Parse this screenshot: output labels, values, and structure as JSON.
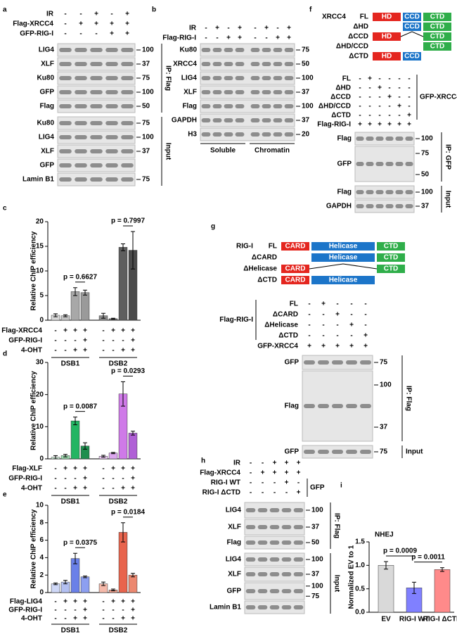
{
  "blots": [
    {
      "label": "a",
      "conditions": [
        {
          "name": "IR",
          "signs": [
            "-",
            "-",
            "+",
            "-",
            "+"
          ]
        },
        {
          "name": "Flag-XRCC4",
          "signs": [
            "-",
            "+",
            "+",
            "+",
            "+"
          ]
        },
        {
          "name": "GFP-RIG-I",
          "signs": [
            "-",
            "-",
            "-",
            "+",
            "+"
          ]
        }
      ],
      "groups": [
        {
          "name": "IP: Flag",
          "bands": [
            {
              "name": "LIG4",
              "markers": [
                100
              ]
            },
            {
              "name": "XLF",
              "markers": [
                37
              ]
            },
            {
              "name": "Ku80",
              "markers": [
                75
              ]
            },
            {
              "name": "GFP",
              "markers": [
                100
              ]
            },
            {
              "name": "Flag",
              "markers": [
                50
              ]
            }
          ]
        },
        {
          "name": "Input",
          "bands": [
            {
              "name": "Ku80",
              "markers": [
                75
              ]
            },
            {
              "name": "LIG4",
              "markers": [
                100
              ]
            },
            {
              "name": "XLF",
              "markers": [
                37
              ]
            },
            {
              "name": "GFP"
            },
            {
              "name": "Lamin B1",
              "markers": [
                75
              ]
            }
          ]
        }
      ]
    },
    {
      "label": "b",
      "conditions": [
        {
          "name": "IR",
          "signs": [
            "-",
            "+",
            "-",
            "+",
            "-",
            "+",
            "-",
            "+"
          ]
        },
        {
          "name": "Flag-RIG-I",
          "signs": [
            "-",
            "-",
            "+",
            "+",
            "-",
            "-",
            "+",
            "+"
          ]
        }
      ],
      "groups": [
        {
          "bands": [
            {
              "name": "Ku80",
              "markers": [
                75
              ]
            },
            {
              "name": "XRCC4",
              "markers": [
                50
              ]
            },
            {
              "name": "LIG4",
              "markers": [
                100
              ]
            },
            {
              "name": "XLF",
              "markers": [
                37
              ]
            },
            {
              "name": "Flag",
              "markers": [
                100
              ]
            },
            {
              "name": "GAPDH",
              "markers": [
                37
              ]
            },
            {
              "name": "H3",
              "markers": [
                20
              ]
            }
          ]
        }
      ],
      "fractions": [
        "Soluble",
        "Chromatin"
      ]
    },
    {
      "label": "f",
      "constructs": {
        "protein": "XRCC4",
        "domain_colors": [
          "#e4261f",
          "#1c75c9",
          "#2fae4a"
        ],
        "rows": [
          {
            "name": "FL",
            "domains": [
              "HD",
              "CCD",
              "CTD"
            ]
          },
          {
            "name": "ΔHD",
            "domains": [
              "CCD",
              "CTD"
            ]
          },
          {
            "name": "ΔCCD",
            "domains": [
              "HD",
              "CTD"
            ]
          },
          {
            "name": "ΔHD/CCD",
            "domains": [
              "CTD"
            ]
          },
          {
            "name": "ΔCTD",
            "domains": [
              "HD",
              "CCD"
            ]
          }
        ]
      },
      "conditions": [
        {
          "group": "GFP-XRCC4",
          "label_side": "right",
          "items": [
            {
              "name": "FL",
              "signs": [
                "-",
                "+",
                "-",
                "-",
                "-",
                "-"
              ]
            },
            {
              "name": "ΔHD",
              "signs": [
                "-",
                "-",
                "+",
                "-",
                "-",
                "-"
              ]
            },
            {
              "name": "ΔCCD",
              "signs": [
                "-",
                "-",
                "-",
                "+",
                "-",
                "-"
              ]
            },
            {
              "name": "ΔHD/CCD",
              "signs": [
                "-",
                "-",
                "-",
                "-",
                "+",
                "-"
              ]
            },
            {
              "name": "ΔCTD",
              "signs": [
                "-",
                "-",
                "-",
                "-",
                "-",
                "+"
              ]
            }
          ]
        },
        {
          "name": "Flag-RIG-I",
          "signs": [
            "+",
            "+",
            "+",
            "+",
            "+",
            "+"
          ]
        }
      ],
      "groups": [
        {
          "name": "IP: GFP",
          "bands": [
            {
              "name": "Flag",
              "markers": [
                100
              ]
            },
            {
              "name": "GFP",
              "markers": [
                75,
                50
              ]
            }
          ]
        },
        {
          "name": "Input",
          "bands": [
            {
              "name": "Flag",
              "markers": [
                100
              ]
            },
            {
              "name": "GAPDH",
              "markers": [
                37
              ]
            }
          ]
        }
      ]
    },
    {
      "label": "g",
      "constructs": {
        "protein": "RIG-I",
        "domain_colors": [
          "#e4261f",
          "#1c75c9",
          "#2fae4a"
        ],
        "rows": [
          {
            "name": "FL",
            "domains": [
              "CARD",
              "Helicase",
              "CTD"
            ]
          },
          {
            "name": "ΔCARD",
            "domains": [
              "Helicase",
              "CTD"
            ]
          },
          {
            "name": "ΔHelicase",
            "domains": [
              "CARD",
              "CTD"
            ]
          },
          {
            "name": "ΔCTD",
            "domains": [
              "CARD",
              "Helicase"
            ]
          }
        ]
      },
      "conditions": [
        {
          "group": "Flag-RIG-I",
          "label_side": "left",
          "items": [
            {
              "name": "FL",
              "signs": [
                "-",
                "+",
                "-",
                "-",
                "-"
              ]
            },
            {
              "name": "ΔCARD",
              "signs": [
                "-",
                "-",
                "+",
                "-",
                "-"
              ]
            },
            {
              "name": "ΔHelicase",
              "signs": [
                "-",
                "-",
                "-",
                "+",
                "-"
              ]
            },
            {
              "name": "ΔCTD",
              "signs": [
                "-",
                "-",
                "-",
                "-",
                "+"
              ]
            }
          ]
        },
        {
          "name": "GFP-XRCC4",
          "signs": [
            "+",
            "+",
            "+",
            "+",
            "+"
          ]
        }
      ],
      "groups": [
        {
          "name": "IP: Flag",
          "bands": [
            {
              "name": "GFP",
              "markers": [
                75
              ]
            },
            {
              "name": "Flag",
              "markers": [
                100,
                37
              ]
            }
          ]
        },
        {
          "name": "Input",
          "bands": [
            {
              "name": "GFP",
              "markers": [
                75
              ]
            }
          ]
        }
      ]
    },
    {
      "label": "h",
      "conditions": [
        {
          "name": "IR",
          "signs": [
            "-",
            "-",
            "+",
            "+",
            "+"
          ]
        },
        {
          "name": "Flag-XRCC4",
          "signs": [
            "-",
            "+",
            "+",
            "+",
            "+"
          ]
        },
        {
          "group": "GFP",
          "label_side": "right",
          "items": [
            {
              "name": "RIG-I WT",
              "signs": [
                "-",
                "-",
                "-",
                "+",
                "-"
              ]
            },
            {
              "name": "RIG-I ΔCTD",
              "signs": [
                "-",
                "-",
                "-",
                "-",
                "+"
              ]
            }
          ]
        }
      ],
      "groups": [
        {
          "name": "IP: Flag",
          "bands": [
            {
              "name": "LIG4",
              "markers": [
                100
              ]
            },
            {
              "name": "XLF",
              "markers": [
                37
              ]
            },
            {
              "name": "Flag",
              "markers": [
                50
              ]
            }
          ]
        },
        {
          "name": "Input",
          "bands": [
            {
              "name": "LIG4",
              "markers": [
                100
              ]
            },
            {
              "name": "XLF",
              "markers": [
                37
              ]
            },
            {
              "name": "GFP",
              "markers": [
                100,
                75
              ]
            },
            {
              "name": "Lamin B1"
            }
          ]
        }
      ]
    }
  ],
  "chart_data": [
    {
      "type": "bar",
      "label": "c",
      "ylabel": "Relative ChIP efficiency",
      "ylim": [
        0,
        20
      ],
      "yticks": [
        0,
        5,
        10,
        15,
        20
      ],
      "groups": [
        "DSB1",
        "DSB2"
      ],
      "values": [
        1.0,
        0.9,
        5.8,
        5.6,
        0.9,
        0.3,
        14.8,
        14.2
      ],
      "errors": [
        0.3,
        0.2,
        0.8,
        0.5,
        0.5,
        0.1,
        0.7,
        3.8
      ],
      "colors": [
        "#d9d9d9",
        "#c4c4c4",
        "#a8a8a8",
        "#9a9a9a",
        "#8a8a8a",
        "#6f6f6f",
        "#5e5e5e",
        "#4a4a4a"
      ],
      "conditions": [
        {
          "name": "Flag-XRCC4",
          "signs": [
            "-",
            "+",
            "+",
            "+",
            "-",
            "+",
            "+",
            "+"
          ]
        },
        {
          "name": "GFP-RIG-I",
          "signs": [
            "-",
            "-",
            "-",
            "+",
            "-",
            "-",
            "-",
            "+"
          ]
        },
        {
          "name": "4-OHT",
          "signs": [
            "-",
            "-",
            "+",
            "+",
            "-",
            "-",
            "+",
            "+"
          ]
        }
      ],
      "p_values": [
        "p = 0.6627",
        "p = 0.7997"
      ]
    },
    {
      "type": "bar",
      "label": "d",
      "ylabel": "Relative ChIP efficiency",
      "ylim": [
        0,
        30
      ],
      "yticks": [
        0,
        10,
        20,
        30
      ],
      "groups": [
        "DSB1",
        "DSB2"
      ],
      "values": [
        0.5,
        1.0,
        11.8,
        4.0,
        0.8,
        1.8,
        20.2,
        8.0
      ],
      "errors": [
        0.5,
        0.4,
        1.2,
        1.0,
        0.3,
        0.2,
        3.8,
        0.6
      ],
      "colors": [
        "#cdeed6",
        "#9bdcae",
        "#23b563",
        "#1e8e4e",
        "#ecc8f5",
        "#dba7ee",
        "#cf7ae8",
        "#b060d6"
      ],
      "conditions": [
        {
          "name": "Flag-XLF",
          "signs": [
            "-",
            "+",
            "+",
            "+",
            "-",
            "+",
            "+",
            "+"
          ]
        },
        {
          "name": "GFP-RIG-I",
          "signs": [
            "-",
            "-",
            "-",
            "+",
            "-",
            "-",
            "-",
            "+"
          ]
        },
        {
          "name": "4-OHT",
          "signs": [
            "-",
            "-",
            "+",
            "+",
            "-",
            "-",
            "+",
            "+"
          ]
        }
      ],
      "p_values": [
        "p = 0.0087",
        "p = 0.0293"
      ]
    },
    {
      "type": "bar",
      "label": "e",
      "ylabel": "Relative ChIP efficiency",
      "ylim": [
        0,
        10
      ],
      "yticks": [
        0,
        2,
        4,
        6,
        8,
        10
      ],
      "groups": [
        "DSB1",
        "DSB2"
      ],
      "values": [
        1.0,
        1.2,
        3.9,
        1.8,
        1.0,
        0.3,
        6.9,
        2.0
      ],
      "errors": [
        0.1,
        0.2,
        0.6,
        0.1,
        0.2,
        0.1,
        1.1,
        0.2
      ],
      "colors": [
        "#cfd8f7",
        "#b3c0f2",
        "#6a80e8",
        "#8d9ff0",
        "#f5b9aa",
        "#efa08d",
        "#e8644d",
        "#ec8870"
      ],
      "conditions": [
        {
          "name": "Flag-LIG4",
          "signs": [
            "-",
            "+",
            "+",
            "+",
            "-",
            "+",
            "+",
            "+"
          ]
        },
        {
          "name": "GFP-RIG-I",
          "signs": [
            "-",
            "-",
            "-",
            "+",
            "-",
            "-",
            "-",
            "+"
          ]
        },
        {
          "name": "4-OHT",
          "signs": [
            "-",
            "-",
            "+",
            "+",
            "-",
            "-",
            "+",
            "+"
          ]
        }
      ],
      "p_values": [
        "p = 0.0375",
        "p = 0.0184"
      ]
    },
    {
      "type": "bar",
      "label": "i",
      "title": "NHEJ",
      "ylabel": "Normalized EV to 1",
      "ylim": [
        0,
        1.5
      ],
      "yticks": [
        {
          "value": 0,
          "label": "0.0"
        },
        0.5,
        {
          "value": 1,
          "label": "1.0"
        },
        1.5
      ],
      "categories": [
        "EV",
        "RIG-I WT",
        "RIG-I ΔCTD"
      ],
      "values": [
        1.0,
        0.52,
        0.91
      ],
      "errors": [
        0.08,
        0.12,
        0.04
      ],
      "colors": [
        "#d9d9d9",
        "#8080ff",
        "#ff8a8a"
      ],
      "p_values": [
        "p = 0.0009",
        "p = 0.0011"
      ]
    }
  ]
}
